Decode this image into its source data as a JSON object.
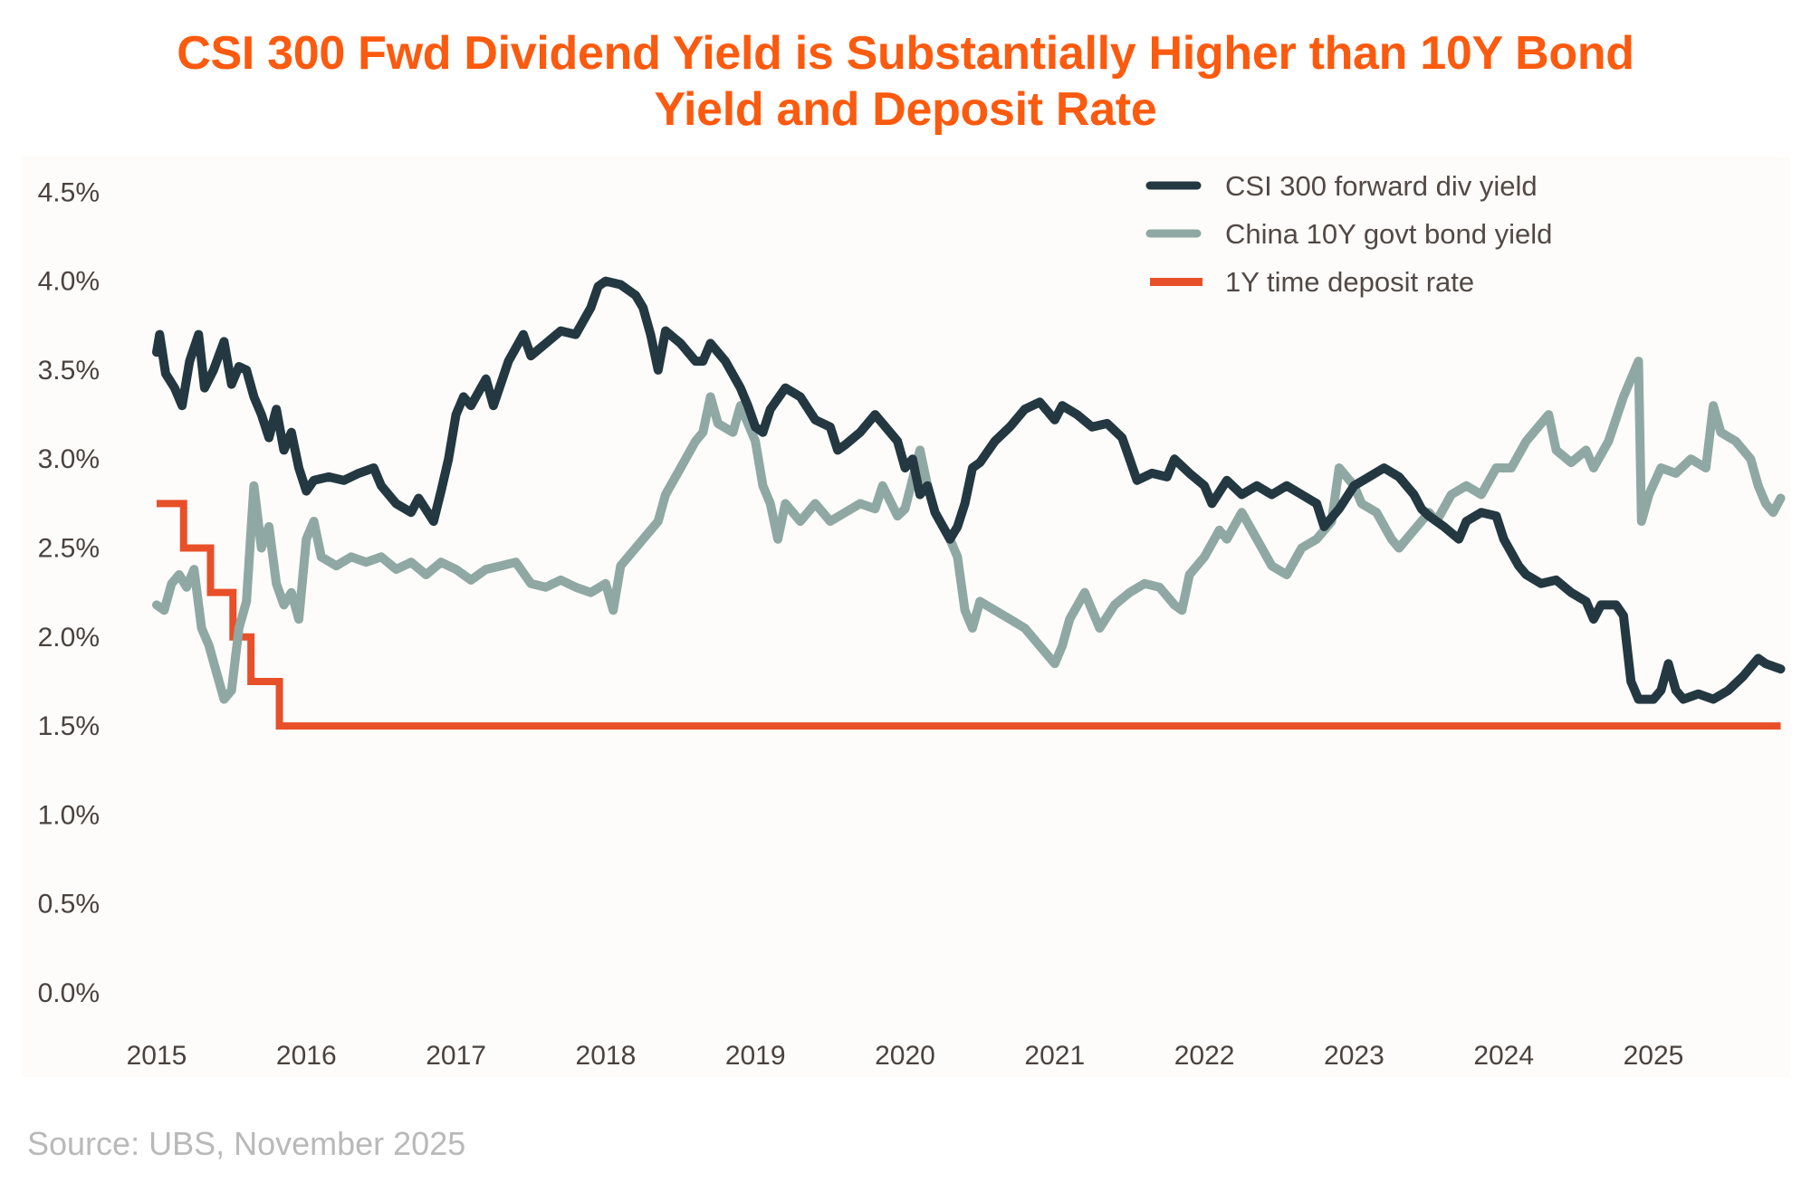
{
  "title_line1": "CSI 300 Fwd Dividend Yield is Substantially Higher than 10Y Bond",
  "title_line2": "Yield and Deposit Rate",
  "source": "Source: UBS, November 2025",
  "colors": {
    "title": "#fb5a0f",
    "csi": "#233840",
    "bond": "#8fa8a3",
    "deposit": "#e8502a",
    "text": "#4a423e",
    "source": "#b9b9b9"
  },
  "chart_data": {
    "type": "line",
    "title": "CSI 300 Fwd Dividend Yield is Substantially Higher than 10Y Bond Yield and Deposit Rate",
    "xlabel": "",
    "ylabel": "",
    "xlim": [
      2015.0,
      2025.85
    ],
    "ylim": [
      0.0,
      4.5
    ],
    "grid": false,
    "legend_position": "top-right",
    "x_ticks": [
      2015,
      2016,
      2017,
      2018,
      2019,
      2020,
      2021,
      2022,
      2023,
      2024,
      2025
    ],
    "x_tick_labels": [
      "2015",
      "2016",
      "2017",
      "2018",
      "2019",
      "2020",
      "2021",
      "2022",
      "2023",
      "2024",
      "2025"
    ],
    "y_ticks": [
      0.0,
      0.5,
      1.0,
      1.5,
      2.0,
      2.5,
      3.0,
      3.5,
      4.0,
      4.5
    ],
    "y_tick_labels": [
      "0.0%",
      "0.5%",
      "1.0%",
      "1.5%",
      "2.0%",
      "2.5%",
      "3.0%",
      "3.5%",
      "4.0%",
      "4.5%"
    ],
    "series": [
      {
        "name": "CSI 300 forward div yield",
        "style": "line",
        "x": [
          2015.0,
          2015.02,
          2015.06,
          2015.12,
          2015.17,
          2015.22,
          2015.28,
          2015.32,
          2015.38,
          2015.45,
          2015.5,
          2015.55,
          2015.6,
          2015.65,
          2015.7,
          2015.75,
          2015.8,
          2015.85,
          2015.9,
          2015.95,
          2016.0,
          2016.05,
          2016.15,
          2016.25,
          2016.35,
          2016.45,
          2016.5,
          2016.6,
          2016.7,
          2016.75,
          2016.85,
          2016.9,
          2016.95,
          2017.0,
          2017.05,
          2017.1,
          2017.2,
          2017.25,
          2017.35,
          2017.45,
          2017.5,
          2017.6,
          2017.7,
          2017.8,
          2017.9,
          2017.95,
          2018.0,
          2018.1,
          2018.2,
          2018.25,
          2018.3,
          2018.35,
          2018.4,
          2018.5,
          2018.6,
          2018.65,
          2018.7,
          2018.8,
          2018.9,
          2018.95,
          2019.0,
          2019.05,
          2019.1,
          2019.2,
          2019.3,
          2019.4,
          2019.5,
          2019.55,
          2019.6,
          2019.7,
          2019.8,
          2019.85,
          2019.95,
          2020.0,
          2020.05,
          2020.1,
          2020.15,
          2020.2,
          2020.3,
          2020.35,
          2020.4,
          2020.45,
          2020.5,
          2020.6,
          2020.7,
          2020.8,
          2020.9,
          2021.0,
          2021.05,
          2021.15,
          2021.25,
          2021.35,
          2021.45,
          2021.5,
          2021.55,
          2021.65,
          2021.75,
          2021.8,
          2021.9,
          2022.0,
          2022.05,
          2022.15,
          2022.25,
          2022.35,
          2022.45,
          2022.55,
          2022.65,
          2022.75,
          2022.8,
          2022.9,
          2023.0,
          2023.1,
          2023.2,
          2023.3,
          2023.4,
          2023.45,
          2023.5,
          2023.6,
          2023.7,
          2023.75,
          2023.85,
          2023.95,
          2024.0,
          2024.1,
          2024.15,
          2024.25,
          2024.35,
          2024.45,
          2024.55,
          2024.6,
          2024.65,
          2024.75,
          2024.8,
          2024.85,
          2024.9,
          2025.0,
          2025.05,
          2025.1,
          2025.15,
          2025.2,
          2025.3,
          2025.4,
          2025.5,
          2025.6,
          2025.7,
          2025.75,
          2025.85
        ],
        "values": [
          3.6,
          3.7,
          3.48,
          3.4,
          3.3,
          3.55,
          3.7,
          3.4,
          3.5,
          3.66,
          3.42,
          3.52,
          3.5,
          3.35,
          3.25,
          3.12,
          3.28,
          3.05,
          3.15,
          2.95,
          2.82,
          2.88,
          2.9,
          2.88,
          2.92,
          2.95,
          2.85,
          2.75,
          2.7,
          2.78,
          2.65,
          2.82,
          3.0,
          3.25,
          3.35,
          3.3,
          3.45,
          3.3,
          3.55,
          3.7,
          3.58,
          3.65,
          3.72,
          3.7,
          3.85,
          3.97,
          4.0,
          3.98,
          3.92,
          3.85,
          3.7,
          3.5,
          3.72,
          3.65,
          3.55,
          3.55,
          3.65,
          3.55,
          3.4,
          3.3,
          3.18,
          3.15,
          3.28,
          3.4,
          3.35,
          3.22,
          3.18,
          3.05,
          3.08,
          3.15,
          3.25,
          3.2,
          3.1,
          2.95,
          3.0,
          2.8,
          2.85,
          2.7,
          2.55,
          2.62,
          2.75,
          2.95,
          2.98,
          3.1,
          3.18,
          3.28,
          3.32,
          3.22,
          3.3,
          3.25,
          3.18,
          3.2,
          3.12,
          3.0,
          2.88,
          2.92,
          2.9,
          3.0,
          2.92,
          2.85,
          2.75,
          2.88,
          2.8,
          2.85,
          2.8,
          2.85,
          2.8,
          2.75,
          2.62,
          2.72,
          2.85,
          2.9,
          2.95,
          2.9,
          2.8,
          2.72,
          2.68,
          2.62,
          2.55,
          2.65,
          2.7,
          2.68,
          2.55,
          2.4,
          2.35,
          2.3,
          2.32,
          2.25,
          2.2,
          2.1,
          2.18,
          2.18,
          2.12,
          1.75,
          1.65,
          1.65,
          1.7,
          1.85,
          1.7,
          1.65,
          1.68,
          1.65,
          1.7,
          1.78,
          1.88,
          1.85,
          1.82
        ]
      },
      {
        "name": "China 10Y govt bond yield",
        "style": "line",
        "x": [
          2015.0,
          2015.05,
          2015.1,
          2015.15,
          2015.2,
          2015.25,
          2015.3,
          2015.35,
          2015.4,
          2015.45,
          2015.5,
          2015.55,
          2015.6,
          2015.65,
          2015.7,
          2015.75,
          2015.8,
          2015.85,
          2015.9,
          2015.95,
          2016.0,
          2016.05,
          2016.1,
          2016.2,
          2016.3,
          2016.4,
          2016.5,
          2016.6,
          2016.7,
          2016.8,
          2016.9,
          2017.0,
          2017.1,
          2017.2,
          2017.3,
          2017.4,
          2017.5,
          2017.6,
          2017.7,
          2017.8,
          2017.9,
          2018.0,
          2018.05,
          2018.1,
          2018.15,
          2018.25,
          2018.35,
          2018.4,
          2018.5,
          2018.6,
          2018.65,
          2018.7,
          2018.75,
          2018.85,
          2018.9,
          2019.0,
          2019.05,
          2019.1,
          2019.15,
          2019.2,
          2019.3,
          2019.4,
          2019.5,
          2019.6,
          2019.7,
          2019.8,
          2019.85,
          2019.95,
          2020.0,
          2020.1,
          2020.15,
          2020.2,
          2020.3,
          2020.35,
          2020.4,
          2020.45,
          2020.5,
          2020.6,
          2020.7,
          2020.8,
          2020.9,
          2021.0,
          2021.05,
          2021.1,
          2021.2,
          2021.25,
          2021.3,
          2021.4,
          2021.5,
          2021.6,
          2021.7,
          2021.8,
          2021.85,
          2021.9,
          2022.0,
          2022.1,
          2022.15,
          2022.25,
          2022.35,
          2022.45,
          2022.55,
          2022.65,
          2022.75,
          2022.85,
          2022.9,
          2023.0,
          2023.05,
          2023.15,
          2023.25,
          2023.3,
          2023.4,
          2023.5,
          2023.55,
          2023.65,
          2023.75,
          2023.85,
          2023.95,
          2024.05,
          2024.15,
          2024.25,
          2024.3,
          2024.35,
          2024.45,
          2024.55,
          2024.6,
          2024.7,
          2024.8,
          2024.85,
          2024.9,
          2024.92,
          2024.97,
          2025.05,
          2025.15,
          2025.25,
          2025.35,
          2025.4,
          2025.45,
          2025.55,
          2025.65,
          2025.7,
          2025.75,
          2025.8,
          2025.85
        ],
        "values": [
          2.18,
          2.15,
          2.3,
          2.35,
          2.28,
          2.38,
          2.05,
          1.95,
          1.8,
          1.65,
          1.7,
          2.05,
          2.2,
          2.85,
          2.5,
          2.62,
          2.3,
          2.18,
          2.25,
          2.1,
          2.55,
          2.65,
          2.45,
          2.4,
          2.45,
          2.42,
          2.45,
          2.38,
          2.42,
          2.35,
          2.42,
          2.38,
          2.32,
          2.38,
          2.4,
          2.42,
          2.3,
          2.28,
          2.32,
          2.28,
          2.25,
          2.3,
          2.15,
          2.4,
          2.45,
          2.55,
          2.65,
          2.8,
          2.95,
          3.1,
          3.15,
          3.35,
          3.2,
          3.15,
          3.3,
          3.1,
          2.85,
          2.75,
          2.55,
          2.75,
          2.65,
          2.75,
          2.65,
          2.7,
          2.75,
          2.72,
          2.85,
          2.68,
          2.72,
          3.05,
          2.85,
          2.7,
          2.55,
          2.45,
          2.15,
          2.05,
          2.2,
          2.15,
          2.1,
          2.05,
          1.95,
          1.85,
          1.95,
          2.1,
          2.25,
          2.15,
          2.05,
          2.18,
          2.25,
          2.3,
          2.28,
          2.18,
          2.15,
          2.35,
          2.45,
          2.6,
          2.55,
          2.7,
          2.55,
          2.4,
          2.35,
          2.5,
          2.55,
          2.65,
          2.95,
          2.85,
          2.75,
          2.7,
          2.55,
          2.5,
          2.6,
          2.7,
          2.65,
          2.8,
          2.85,
          2.8,
          2.95,
          2.95,
          3.1,
          3.2,
          3.25,
          3.05,
          2.98,
          3.05,
          2.95,
          3.1,
          3.35,
          3.45,
          3.55,
          2.65,
          2.8,
          2.95,
          2.92,
          3.0,
          2.95,
          3.3,
          3.15,
          3.1,
          3.0,
          2.85,
          2.75,
          2.7,
          2.78
        ]
      },
      {
        "name": "1Y time deposit rate",
        "style": "step",
        "x": [
          2015.0,
          2015.18,
          2015.36,
          2015.51,
          2015.63,
          2015.82,
          2025.85
        ],
        "values": [
          2.75,
          2.5,
          2.25,
          2.0,
          1.75,
          1.5,
          1.5
        ]
      }
    ]
  }
}
